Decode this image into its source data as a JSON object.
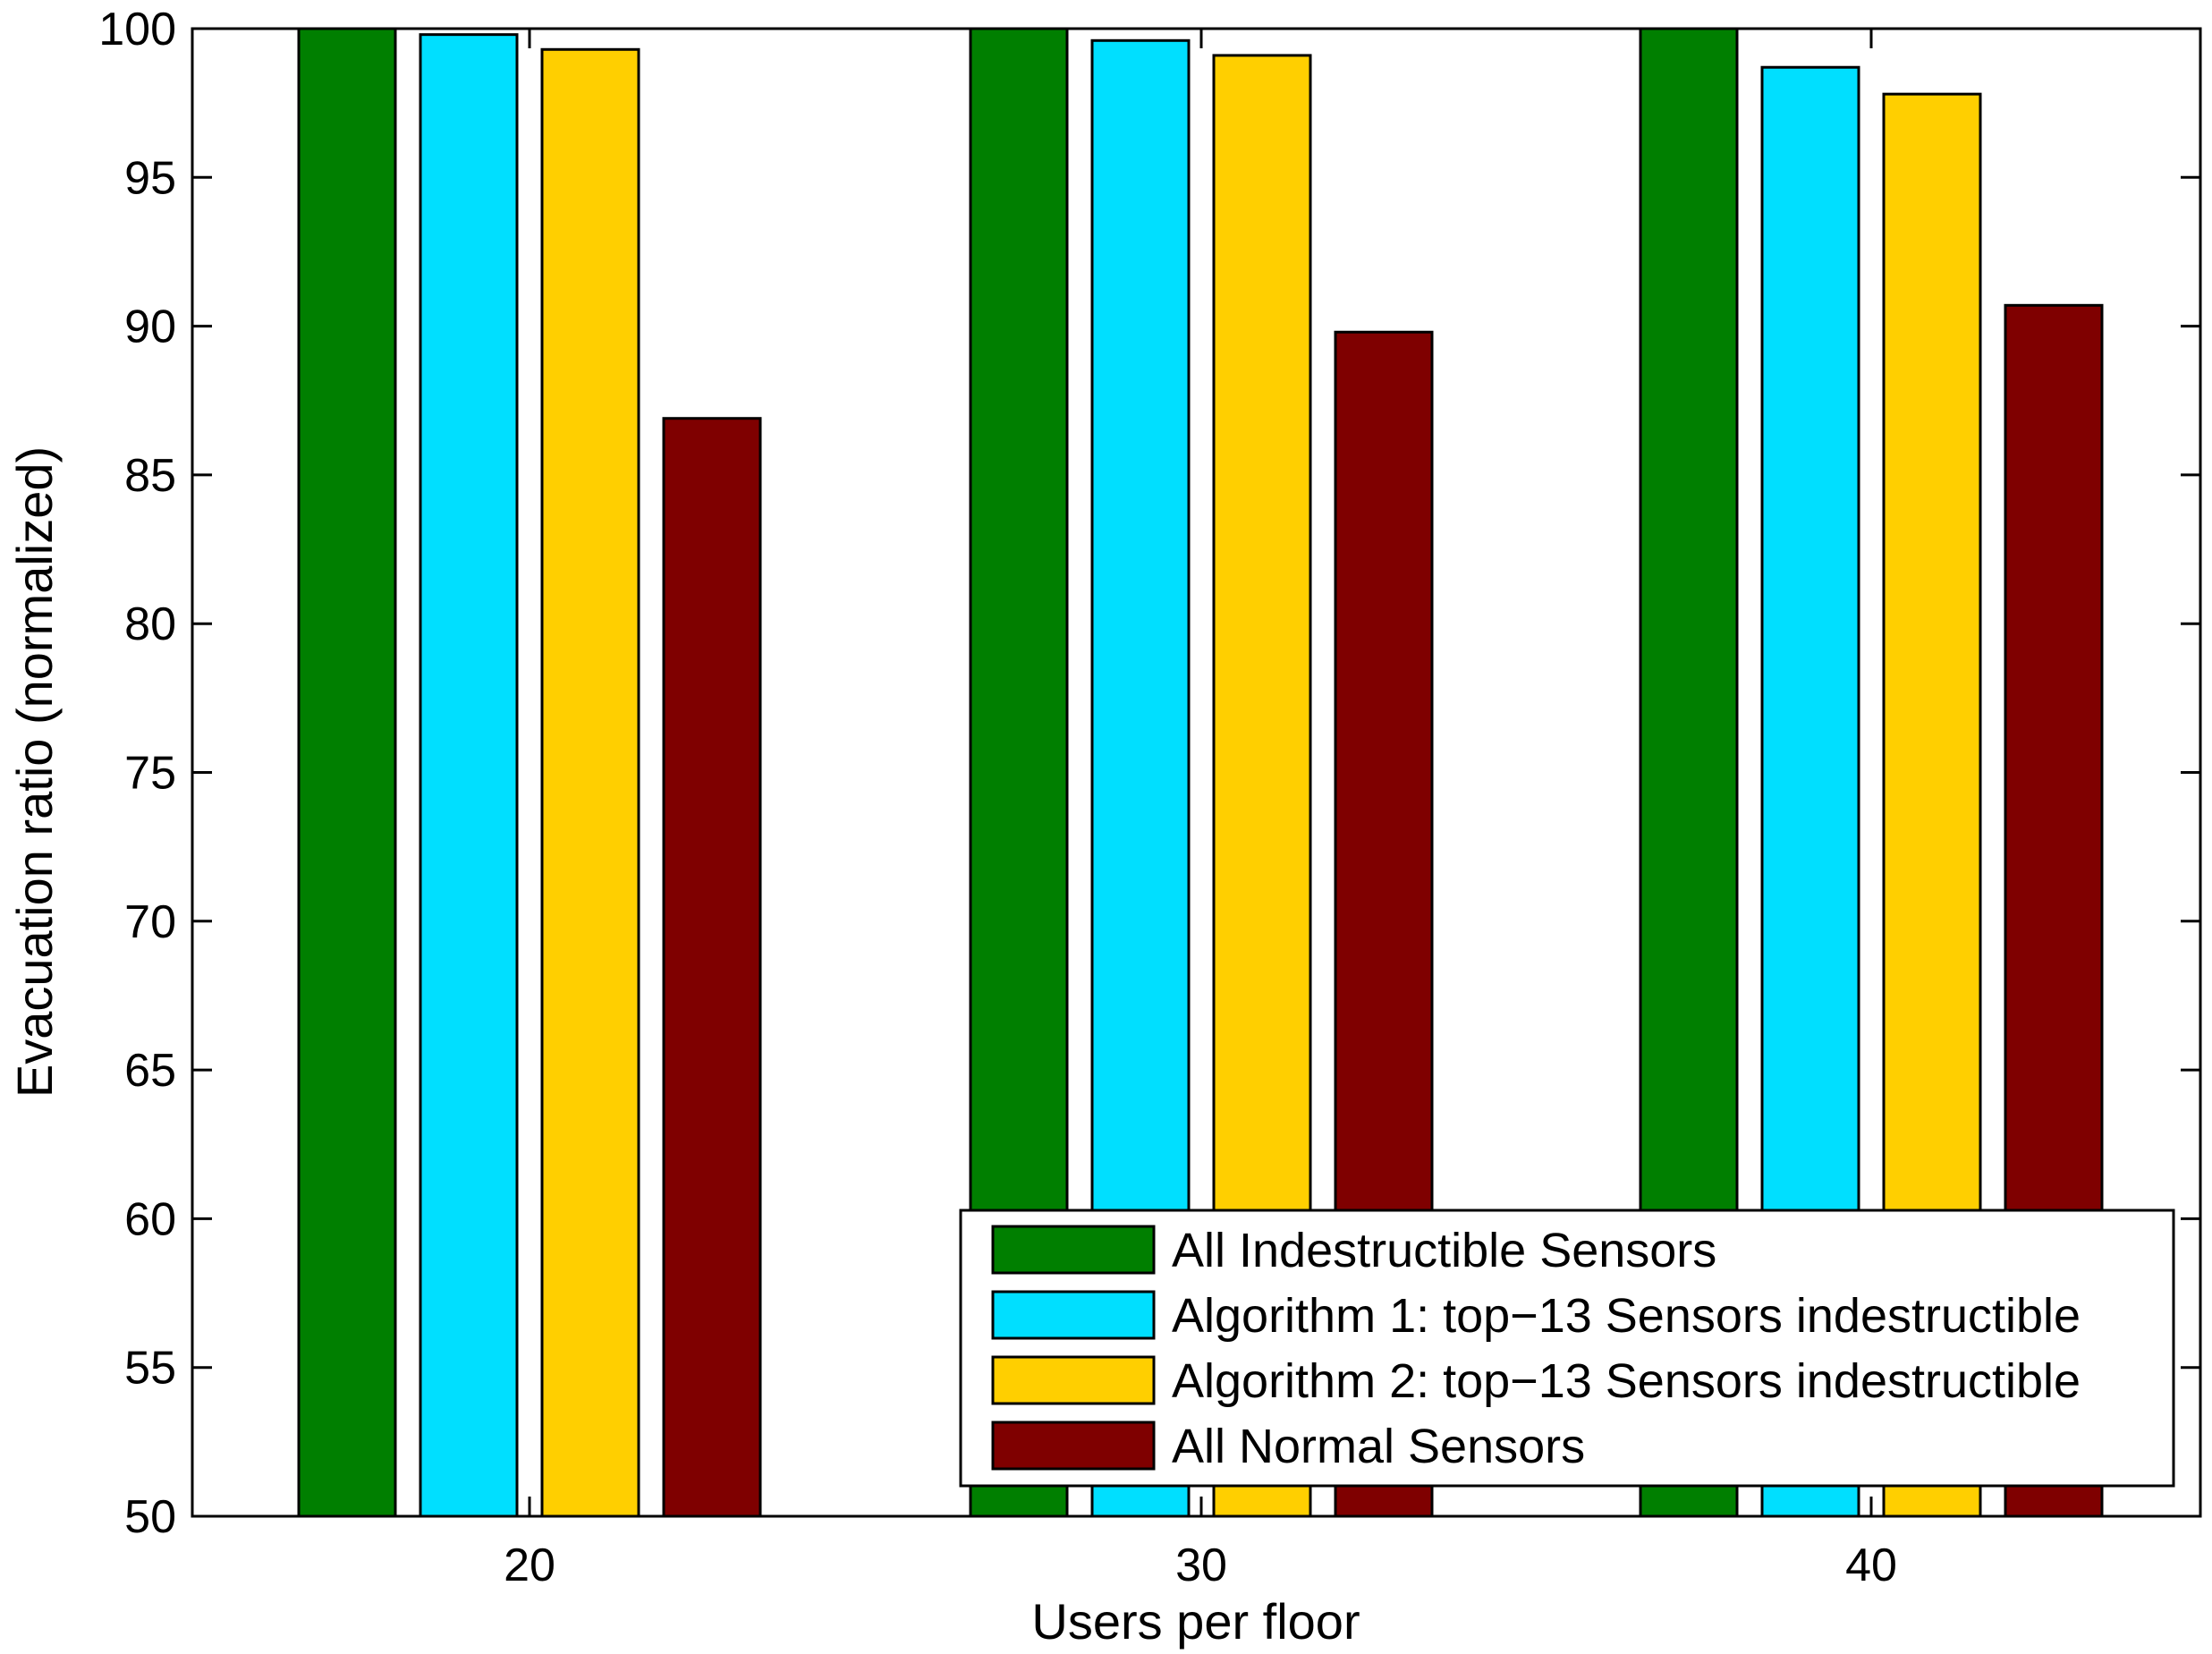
{
  "chart_data": {
    "type": "bar",
    "title": "",
    "xlabel": "Users per floor",
    "ylabel": "Evacuation ratio (normalized)",
    "categories": [
      "20",
      "30",
      "40"
    ],
    "ylim": [
      50,
      100
    ],
    "yticks": [
      "50",
      "55",
      "60",
      "65",
      "70",
      "75",
      "80",
      "85",
      "90",
      "95",
      "100"
    ],
    "grid": false,
    "legend_position": "bottom-right",
    "series": [
      {
        "name": "All Indestructible Sensors",
        "color": "#007f00",
        "values": [
          100,
          100,
          100
        ]
      },
      {
        "name": "Algorithm 1: top−13 Sensors indestructible",
        "color": "#00dfff",
        "values": [
          99.8,
          99.6,
          98.7
        ]
      },
      {
        "name": "Algorithm 2: top−13 Sensors indestructible",
        "color": "#ffcf00",
        "values": [
          99.3,
          99.1,
          97.8
        ]
      },
      {
        "name": "All Normal Sensors",
        "color": "#7f0000",
        "values": [
          86.9,
          89.8,
          90.7
        ]
      }
    ]
  }
}
